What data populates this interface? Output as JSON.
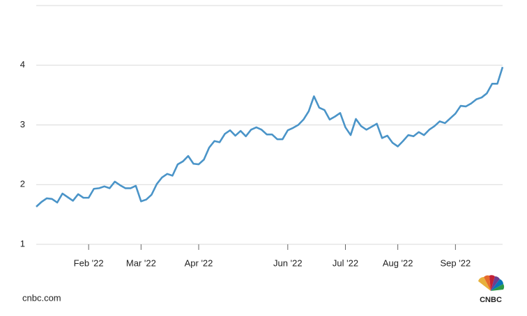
{
  "chart_data": {
    "type": "line",
    "values": [
      1.63,
      1.71,
      1.77,
      1.76,
      1.7,
      1.85,
      1.79,
      1.73,
      1.84,
      1.78,
      1.78,
      1.93,
      1.94,
      1.97,
      1.94,
      2.05,
      1.99,
      1.94,
      1.94,
      1.98,
      1.72,
      1.75,
      1.83,
      2.01,
      2.12,
      2.18,
      2.15,
      2.34,
      2.39,
      2.48,
      2.35,
      2.34,
      2.42,
      2.62,
      2.73,
      2.71,
      2.85,
      2.91,
      2.82,
      2.9,
      2.81,
      2.92,
      2.96,
      2.92,
      2.84,
      2.84,
      2.76,
      2.76,
      2.91,
      2.95,
      3.0,
      3.09,
      3.23,
      3.48,
      3.29,
      3.25,
      3.09,
      3.14,
      3.2,
      2.96,
      2.83,
      3.1,
      2.98,
      2.92,
      2.97,
      3.02,
      2.78,
      2.82,
      2.7,
      2.64,
      2.73,
      2.83,
      2.81,
      2.88,
      2.83,
      2.92,
      2.98,
      3.06,
      3.03,
      3.11,
      3.19,
      3.32,
      3.31,
      3.36,
      3.43,
      3.46,
      3.53,
      3.69,
      3.69,
      3.97
    ],
    "color": "#4a94c8",
    "xlim": [
      0,
      89
    ],
    "xticks": [
      {
        "value": 10,
        "label": "Feb '22"
      },
      {
        "value": 20,
        "label": "Mar '22"
      },
      {
        "value": 31,
        "label": "Apr '22"
      },
      {
        "value": 48,
        "label": "Jun '22"
      },
      {
        "value": 59,
        "label": "Jul '22"
      },
      {
        "value": 69,
        "label": "Aug '22"
      },
      {
        "value": 80,
        "label": "Sep '22"
      }
    ],
    "ylim": [
      1,
      5
    ],
    "yticks": [
      1,
      2,
      3,
      4
    ],
    "grid": true,
    "source": "cnbc.com",
    "logo": "CNBC"
  }
}
